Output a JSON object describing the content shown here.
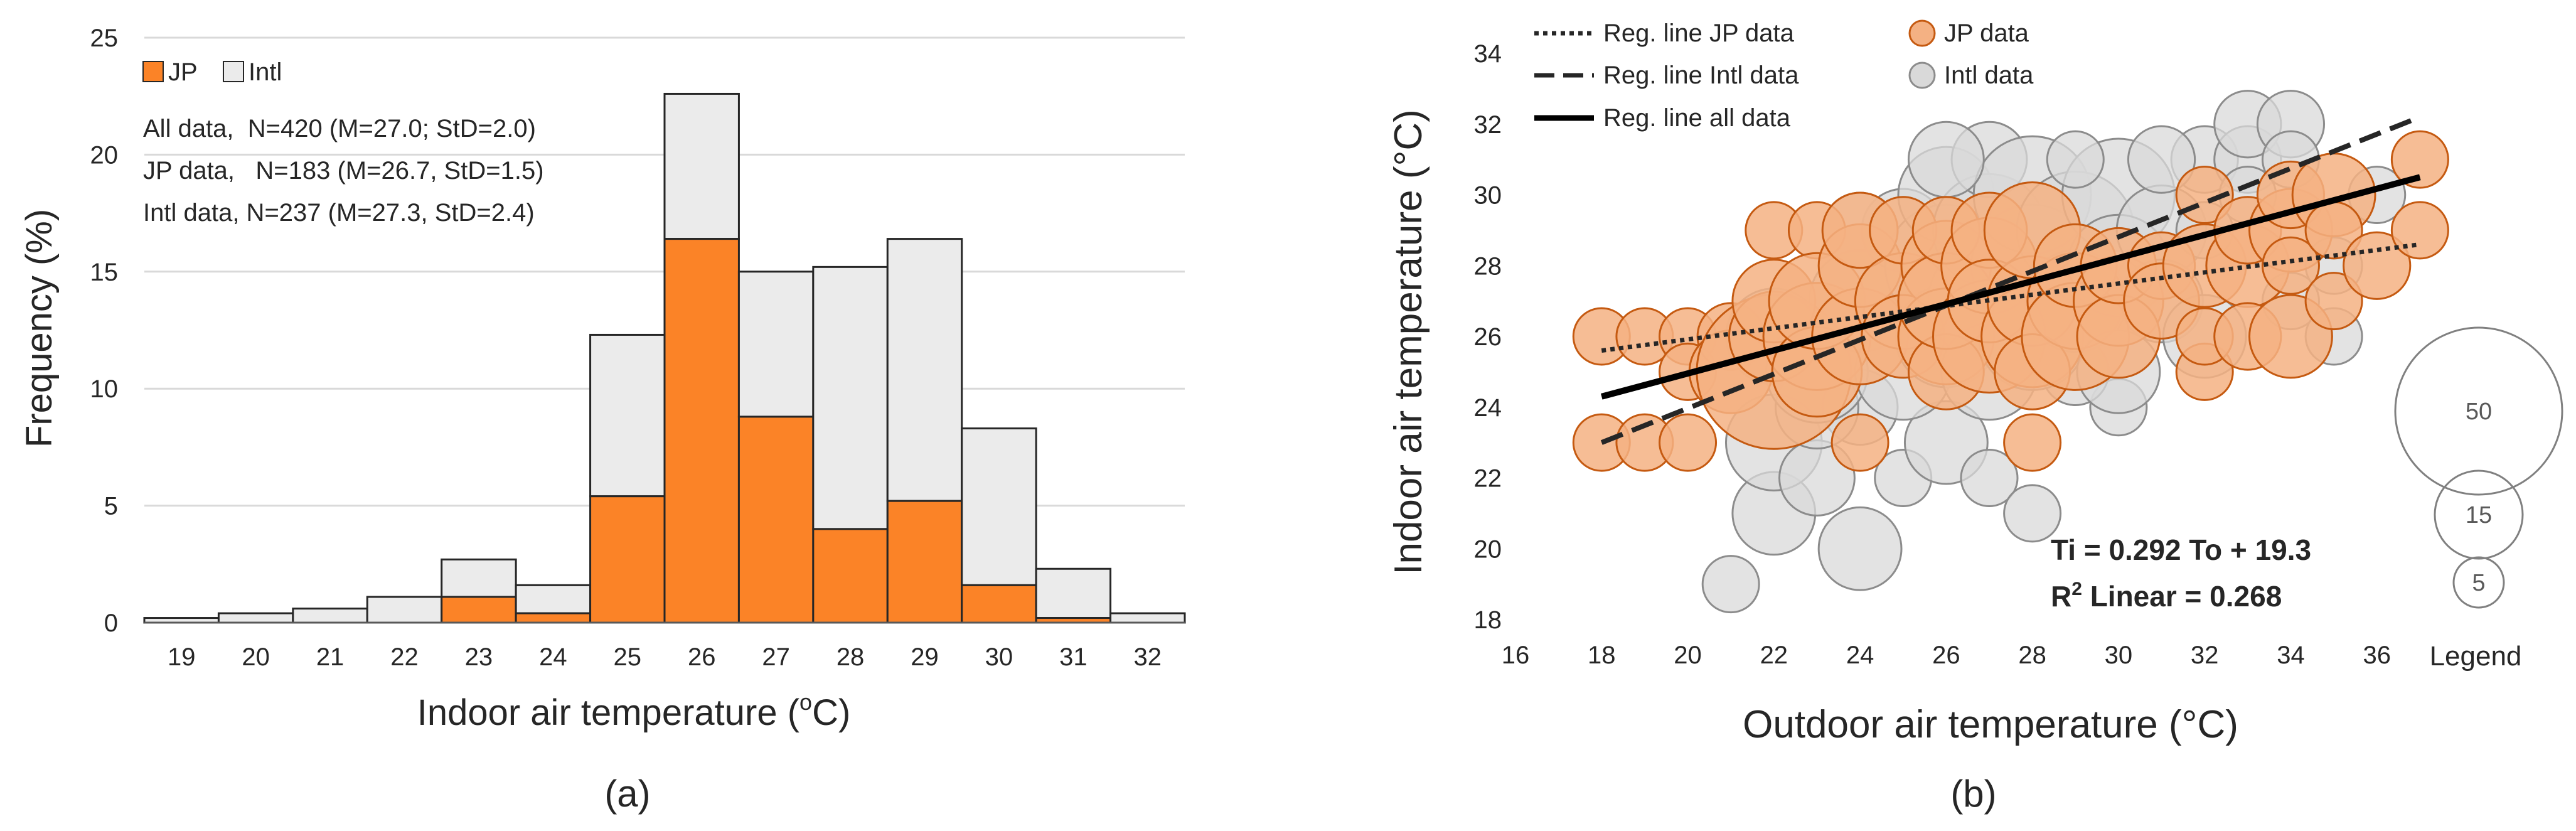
{
  "colors": {
    "jp": "#FB8327",
    "intl": "#EBEBEB",
    "grid": "#D9D9D9",
    "outline": "#262626"
  },
  "chart_data": [
    {
      "type": "bar",
      "panel_label": "(a)",
      "stacked": true,
      "categories": [
        "19",
        "20",
        "21",
        "22",
        "23",
        "24",
        "25",
        "26",
        "27",
        "28",
        "29",
        "30",
        "31",
        "32"
      ],
      "series": [
        {
          "name": "JP",
          "values": [
            0,
            0,
            0,
            0,
            1.1,
            0.4,
            5.4,
            16.4,
            8.8,
            4.0,
            5.2,
            1.6,
            0.2,
            0
          ]
        },
        {
          "name": "Intl",
          "values": [
            0.2,
            0.4,
            0.6,
            1.1,
            1.6,
            1.2,
            6.9,
            6.2,
            6.2,
            11.2,
            11.2,
            6.7,
            2.1,
            0.4
          ]
        }
      ],
      "xlabel": "Indoor air temperature (",
      "xlabel_sup": "o",
      "xlabel_end": "C)",
      "ylabel": "Frequency (%)",
      "ylim": [
        0,
        25
      ],
      "yticks": [
        "0",
        "5",
        "10",
        "15",
        "20",
        "25"
      ],
      "grid": true,
      "legend": [
        "JP",
        "Intl"
      ],
      "annotations": [
        "All data,  N=420 (M=27.0; StD=2.0)",
        "JP data,   N=183 (M=26.7, StD=1.5)",
        "Intl data, N=237 (M=27.3, StD=2.4)"
      ]
    },
    {
      "type": "scatter",
      "panel_label": "(b)",
      "xlabel": "Outdoor air temperature (°C)",
      "ylabel": "Indoor air temperature (°C)",
      "xlim": [
        16,
        38
      ],
      "ylim": [
        18,
        34
      ],
      "xticks": [
        "16",
        "18",
        "20",
        "22",
        "24",
        "26",
        "28",
        "30",
        "32",
        "34",
        "36"
      ],
      "yticks": [
        "18",
        "20",
        "22",
        "24",
        "26",
        "28",
        "30",
        "32",
        "34"
      ],
      "legend": {
        "lines": [
          "Reg. line JP data",
          "Reg. line Intl data",
          "Reg. line all data"
        ],
        "markers": [
          "JP data",
          "Intl data"
        ]
      },
      "equation": "Ti = 0.292 To + 19.3",
      "r2_label": "R",
      "r2_sup": "2",
      "r2_text": " Linear = 0.268",
      "size_legend": {
        "values": [
          "50",
          "15",
          "5"
        ],
        "title": "Legend"
      },
      "regression_lines": [
        {
          "name": "Reg. line JP data",
          "style": "dotted",
          "points": [
            [
              18,
              25.6
            ],
            [
              37,
              28.6
            ]
          ]
        },
        {
          "name": "Reg. line Intl data",
          "style": "dashed",
          "points": [
            [
              18,
              23.0
            ],
            [
              37,
              32.2
            ]
          ]
        },
        {
          "name": "Reg. line all data",
          "style": "solid",
          "points": [
            [
              18,
              24.3
            ],
            [
              37,
              30.5
            ]
          ]
        }
      ],
      "intl_points": [
        [
          21,
          19,
          4
        ],
        [
          22,
          21,
          10
        ],
        [
          24,
          20,
          10
        ],
        [
          22,
          23,
          14
        ],
        [
          23,
          22,
          8
        ],
        [
          24,
          24,
          8
        ],
        [
          23,
          24,
          10
        ],
        [
          25,
          22,
          4
        ],
        [
          26,
          23,
          10
        ],
        [
          27,
          22,
          4
        ],
        [
          28,
          21,
          4
        ],
        [
          30,
          24,
          4
        ],
        [
          29,
          25,
          6
        ],
        [
          22,
          26,
          14
        ],
        [
          23,
          25,
          16
        ],
        [
          24,
          27,
          16
        ],
        [
          25,
          25,
          14
        ],
        [
          25,
          27,
          14
        ],
        [
          25,
          29,
          10
        ],
        [
          26,
          28,
          24
        ],
        [
          26,
          30,
          14
        ],
        [
          26,
          26,
          16
        ],
        [
          27,
          27,
          24
        ],
        [
          27,
          29,
          20
        ],
        [
          27,
          31,
          8
        ],
        [
          27,
          25,
          14
        ],
        [
          28,
          28,
          24
        ],
        [
          28,
          30,
          22
        ],
        [
          28,
          26,
          18
        ],
        [
          29,
          29,
          22
        ],
        [
          29,
          27,
          16
        ],
        [
          30,
          30,
          20
        ],
        [
          30,
          28,
          16
        ],
        [
          30,
          25,
          10
        ],
        [
          31,
          29,
          12
        ],
        [
          31,
          27,
          10
        ],
        [
          32,
          31,
          6
        ],
        [
          32,
          26,
          10
        ],
        [
          33,
          31,
          6
        ],
        [
          33,
          32,
          6
        ],
        [
          34,
          32,
          6
        ],
        [
          33,
          30,
          4
        ],
        [
          34,
          31,
          4
        ],
        [
          34,
          27,
          4
        ],
        [
          35,
          26,
          4
        ],
        [
          36,
          30,
          4
        ],
        [
          32,
          29,
          4
        ],
        [
          35,
          28,
          4
        ],
        [
          31,
          31,
          6
        ],
        [
          24,
          29,
          8
        ],
        [
          26,
          31,
          8
        ],
        [
          29,
          31,
          4
        ]
      ],
      "jp_points": [
        [
          18,
          26,
          4
        ],
        [
          18,
          23,
          4
        ],
        [
          19,
          26,
          4
        ],
        [
          19,
          23,
          4
        ],
        [
          20,
          26,
          4
        ],
        [
          20,
          23,
          4
        ],
        [
          20,
          25,
          4
        ],
        [
          21,
          26,
          6
        ],
        [
          21,
          25,
          10
        ],
        [
          22,
          25,
          40
        ],
        [
          22,
          26,
          12
        ],
        [
          22,
          29,
          4
        ],
        [
          22,
          27,
          10
        ],
        [
          23,
          26,
          18
        ],
        [
          23,
          25,
          12
        ],
        [
          23,
          29,
          4
        ],
        [
          23,
          27,
          14
        ],
        [
          24,
          26,
          14
        ],
        [
          24,
          28,
          10
        ],
        [
          24,
          29,
          8
        ],
        [
          24,
          23,
          4
        ],
        [
          25,
          27,
          14
        ],
        [
          25,
          26,
          10
        ],
        [
          25,
          29,
          6
        ],
        [
          26,
          28,
          12
        ],
        [
          26,
          26,
          14
        ],
        [
          26,
          25,
          8
        ],
        [
          26,
          27,
          14
        ],
        [
          26,
          29,
          6
        ],
        [
          27,
          26,
          20
        ],
        [
          27,
          28,
          14
        ],
        [
          27,
          29,
          8
        ],
        [
          27,
          27,
          10
        ],
        [
          28,
          26,
          16
        ],
        [
          28,
          27,
          12
        ],
        [
          28,
          29,
          14
        ],
        [
          28,
          25,
          8
        ],
        [
          28,
          23,
          4
        ],
        [
          29,
          27,
          14
        ],
        [
          29,
          26,
          18
        ],
        [
          29,
          28,
          10
        ],
        [
          30,
          27,
          12
        ],
        [
          30,
          26,
          10
        ],
        [
          30,
          28,
          8
        ],
        [
          31,
          28,
          6
        ],
        [
          31,
          27,
          8
        ],
        [
          32,
          28,
          10
        ],
        [
          32,
          25,
          4
        ],
        [
          32,
          26,
          4
        ],
        [
          32,
          30,
          4
        ],
        [
          33,
          28,
          10
        ],
        [
          33,
          29,
          6
        ],
        [
          33,
          26,
          6
        ],
        [
          34,
          29,
          10
        ],
        [
          34,
          26,
          10
        ],
        [
          34,
          30,
          6
        ],
        [
          34,
          28,
          4
        ],
        [
          35,
          30,
          10
        ],
        [
          35,
          27,
          4
        ],
        [
          35,
          29,
          4
        ],
        [
          36,
          28,
          6
        ],
        [
          37,
          29,
          4
        ],
        [
          37,
          31,
          4
        ]
      ]
    }
  ]
}
